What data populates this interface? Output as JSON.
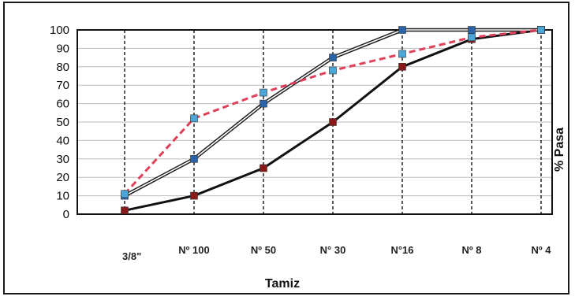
{
  "chart_data": {
    "type": "line",
    "title": "",
    "xlabel": "Tamiz",
    "ylabel": "% Pasa",
    "ylim": [
      0,
      100
    ],
    "yticks": [
      0,
      10,
      20,
      30,
      40,
      50,
      60,
      70,
      80,
      90,
      100
    ],
    "grid": true,
    "categories": [
      "",
      "Nº 100",
      "Nº 50",
      "N° 30",
      "N°16",
      "Nº 8",
      "Nº 4"
    ],
    "extra_tick_label": "3/8\"",
    "series": [
      {
        "style": "double-line",
        "color": "#1c1c1c",
        "marker_color": "#2a63a8",
        "values": [
          10,
          30,
          60,
          85,
          100,
          100,
          100
        ]
      },
      {
        "style": "dashed",
        "color": "#e0405a",
        "marker_color": "#4aa7d8",
        "values": [
          11,
          52,
          66,
          78,
          87,
          96,
          100
        ]
      },
      {
        "style": "solid",
        "color": "#111111",
        "marker_color": "#8a1a1a",
        "values": [
          2,
          10,
          25,
          50,
          80,
          95,
          100
        ]
      }
    ]
  }
}
